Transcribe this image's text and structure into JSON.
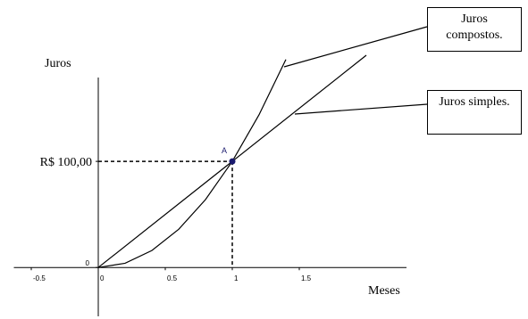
{
  "chart_data": {
    "type": "line",
    "x_label": "Meses",
    "y_label": "Juros",
    "xlim": [
      -0.63,
      2.3
    ],
    "ylim": [
      -46,
      200
    ],
    "xticks": [
      -0.5,
      0,
      0.5,
      1,
      1.5
    ],
    "yticks": [
      0,
      {
        "value": 100,
        "label": "R$ 100,00"
      }
    ],
    "series": [
      {
        "name": "Juros simples.",
        "color": "#000000",
        "x": [
          0,
          2
        ],
        "values": [
          0,
          200
        ]
      },
      {
        "name": "Juros compostos.",
        "color": "#000000",
        "x": [
          0,
          0.2,
          0.4,
          0.6,
          0.8,
          1,
          1.2,
          1.4
        ],
        "values": [
          0,
          4,
          16,
          36,
          64,
          100,
          144,
          196
        ]
      }
    ],
    "point": {
      "label": "A",
      "x": 1,
      "y": 100,
      "color": "#1a1a6e"
    }
  }
}
